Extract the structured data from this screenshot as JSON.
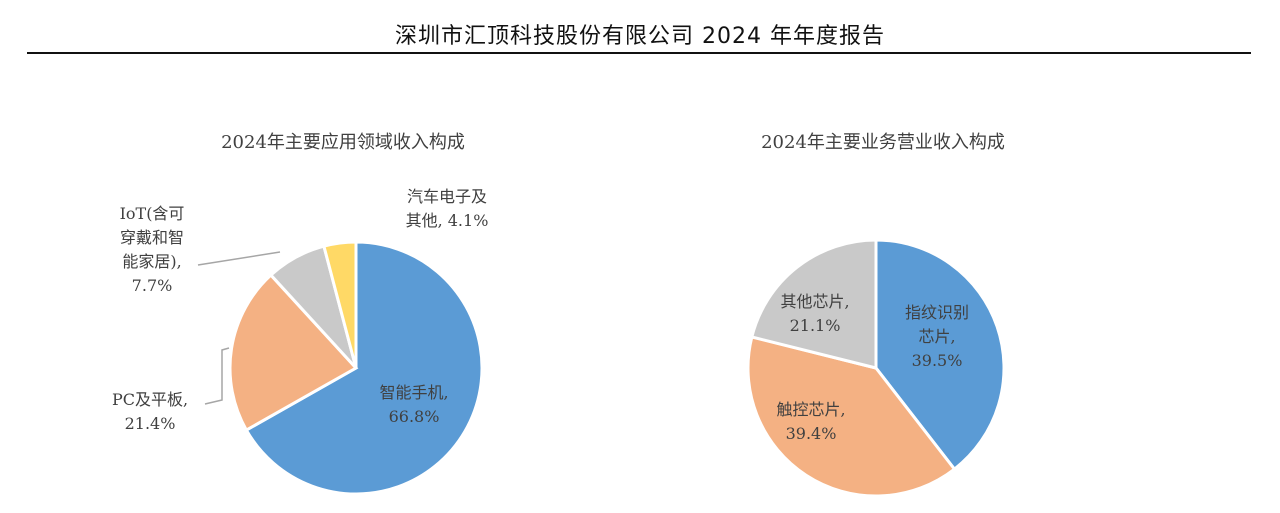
{
  "header": {
    "title": "深圳市汇顶科技股份有限公司 2024 年年度报告"
  },
  "chart_data": [
    {
      "type": "pie",
      "title": "2024年主要应用领域收入构成",
      "start_angle_deg": 0,
      "direction": "clockwise",
      "slices": [
        {
          "label": [
            "智能手机,",
            "66.8%"
          ],
          "value": 66.8,
          "color": "#5B9BD5",
          "label_inside": true
        },
        {
          "label": [
            "PC及平板,",
            "21.4%"
          ],
          "value": 21.4,
          "color": "#F4B183",
          "label_inside": false
        },
        {
          "label": [
            "IoT(含可",
            "穿戴和智",
            "能家居),",
            "7.7%"
          ],
          "value": 7.7,
          "color": "#C9C9C9",
          "label_inside": false
        },
        {
          "label": [
            "汽车电子及",
            "其他, 4.1%"
          ],
          "value": 4.1,
          "color": "#FFD966",
          "label_inside": false
        }
      ]
    },
    {
      "type": "pie",
      "title": "2024年主要业务营业收入构成",
      "start_angle_deg": 0,
      "direction": "clockwise",
      "slices": [
        {
          "label": [
            "指纹识别",
            "芯片,",
            "39.5%"
          ],
          "value": 39.5,
          "color": "#5B9BD5",
          "label_inside": true
        },
        {
          "label": [
            "触控芯片,",
            "39.4%"
          ],
          "value": 39.4,
          "color": "#F4B183",
          "label_inside": true
        },
        {
          "label": [
            "其他芯片,",
            "21.1%"
          ],
          "value": 21.1,
          "color": "#C9C9C9",
          "label_inside": true
        }
      ]
    }
  ]
}
